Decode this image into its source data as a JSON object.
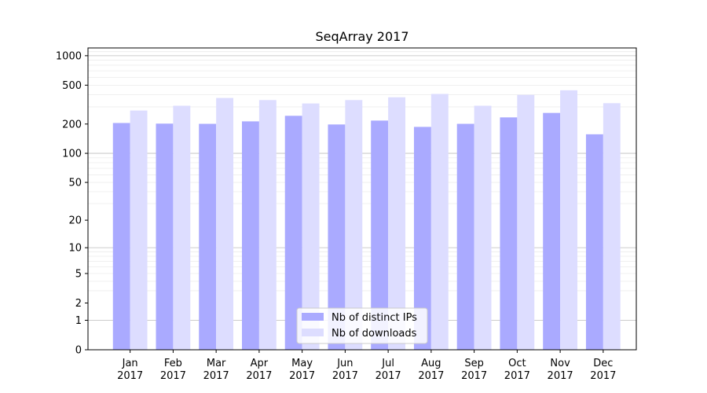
{
  "chart_data": {
    "type": "bar",
    "title": "SeqArray 2017",
    "xlabel": "",
    "ylabel": "",
    "yscale": "log(1+y)",
    "ylim": [
      0,
      1200
    ],
    "yticks": [
      {
        "value": 0,
        "label": "0"
      },
      {
        "value": 1,
        "label": "1"
      },
      {
        "value": 2,
        "label": "2"
      },
      {
        "value": 5,
        "label": "5"
      },
      {
        "value": 10,
        "label": "10"
      },
      {
        "value": 20,
        "label": "20"
      },
      {
        "value": 50,
        "label": "50"
      },
      {
        "value": 100,
        "label": "100"
      },
      {
        "value": 200,
        "label": "200"
      },
      {
        "value": 500,
        "label": "500"
      },
      {
        "value": 1000,
        "label": "1000"
      }
    ],
    "grid": true,
    "legend_position": "bottom-center",
    "categories": [
      [
        "Jan",
        "2017"
      ],
      [
        "Feb",
        "2017"
      ],
      [
        "Mar",
        "2017"
      ],
      [
        "Apr",
        "2017"
      ],
      [
        "May",
        "2017"
      ],
      [
        "Jun",
        "2017"
      ],
      [
        "Jul",
        "2017"
      ],
      [
        "Aug",
        "2017"
      ],
      [
        "Sep",
        "2017"
      ],
      [
        "Oct",
        "2017"
      ],
      [
        "Nov",
        "2017"
      ],
      [
        "Dec",
        "2017"
      ]
    ],
    "series": [
      {
        "name": "Nb of distinct IPs",
        "color": "#aaaaff",
        "values": [
          205,
          202,
          201,
          213,
          243,
          198,
          217,
          187,
          201,
          234,
          260,
          157
        ]
      },
      {
        "name": "Nb of downloads",
        "color": "#ddddff",
        "values": [
          275,
          308,
          370,
          352,
          325,
          352,
          376,
          407,
          308,
          398,
          443,
          327
        ]
      }
    ]
  }
}
